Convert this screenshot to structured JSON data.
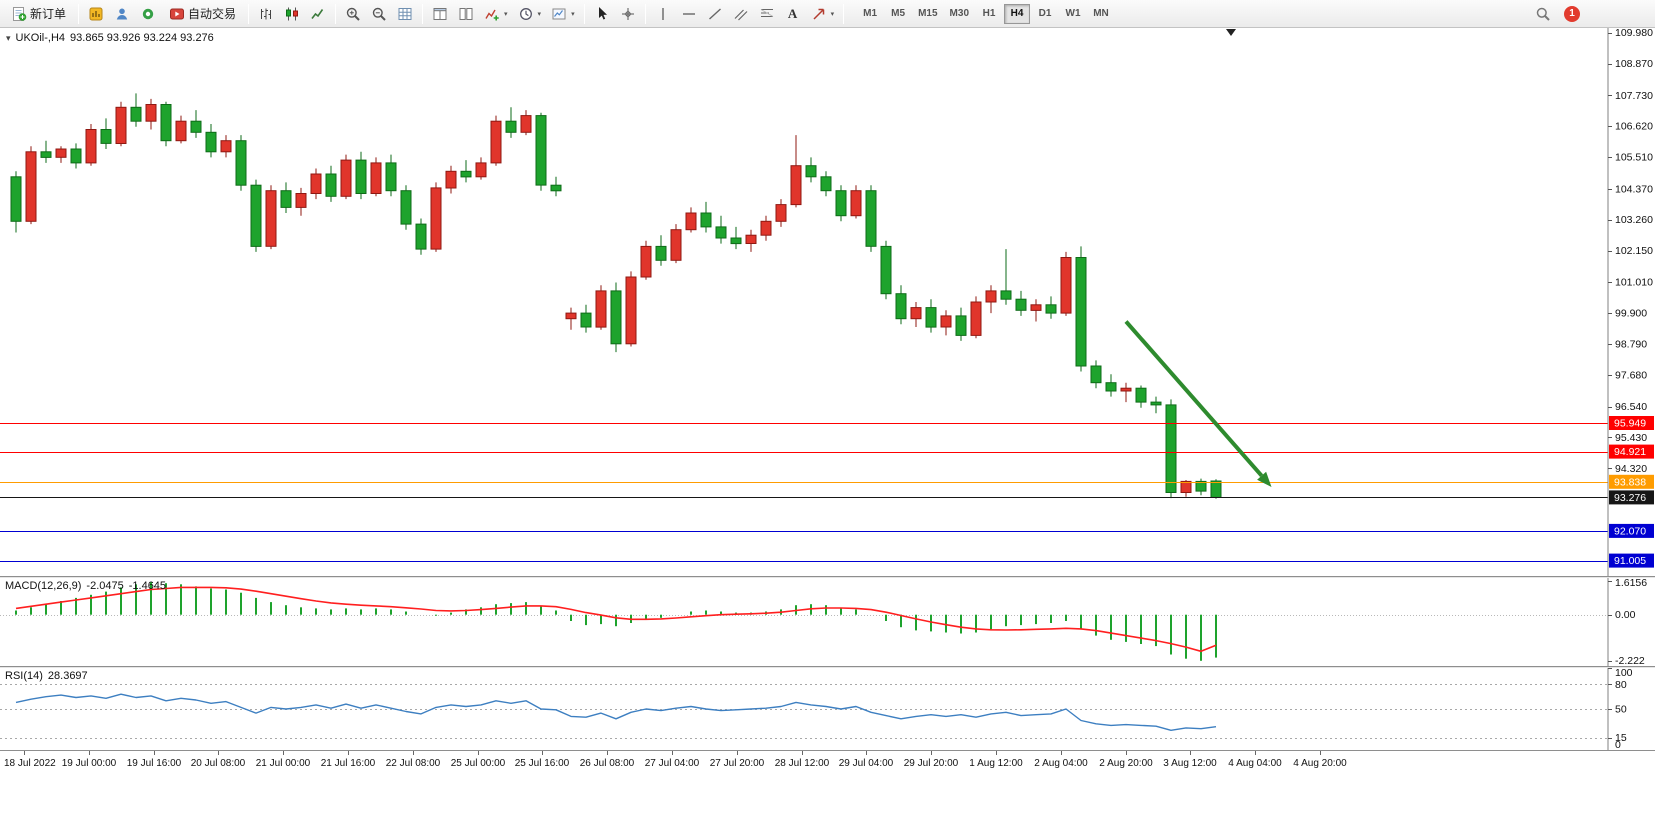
{
  "toolbar": {
    "new_order_label": "新订单",
    "autotrading_label": "自动交易",
    "text_tool_label": "A",
    "timeframes": [
      "M1",
      "M5",
      "M15",
      "M30",
      "H1",
      "H4",
      "D1",
      "W1",
      "MN"
    ],
    "active_timeframe": "H4",
    "notification_count": "1"
  },
  "chart_header": {
    "symbol_period": "UKOil-,H4",
    "ohlc_text": "93.865 93.926 93.224 93.276"
  },
  "indicators": {
    "macd": {
      "label": "MACD(12,26,9)",
      "value_main": "-2.0475",
      "value_signal": "-1.4645"
    },
    "rsi": {
      "label": "RSI(14)",
      "value": "28.3697"
    }
  },
  "time_axis": {
    "labels": [
      "18 Jul 2022",
      "19 Jul 00:00",
      "19 Jul 16:00",
      "20 Jul 08:00",
      "21 Jul 00:00",
      "21 Jul 16:00",
      "22 Jul 08:00",
      "25 Jul 00:00",
      "25 Jul 16:00",
      "26 Jul 08:00",
      "27 Jul 04:00",
      "27 Jul 20:00",
      "28 Jul 12:00",
      "29 Jul 04:00",
      "29 Jul 20:00",
      "1 Aug 12:00",
      "2 Aug 04:00",
      "2 Aug 20:00",
      "3 Aug 12:00",
      "4 Aug 04:00",
      "4 Aug 20:00"
    ]
  },
  "chart_data": [
    {
      "type": "candlestick",
      "symbol": "UKOil-",
      "timeframe": "H4",
      "color_convention": "red=bullish, green=bearish",
      "ylim": [
        90.45,
        110.15
      ],
      "up_color": "#e0352b",
      "up_border": "#8f1812",
      "down_color": "#1ea32d",
      "down_border": "#0e6b18",
      "y_ticks": [
        "109.980",
        "108.870",
        "107.730",
        "106.620",
        "105.510",
        "104.370",
        "103.260",
        "102.150",
        "101.010",
        "99.900",
        "98.790",
        "97.680",
        "96.540",
        "95.430",
        "94.320"
      ],
      "levels": [
        {
          "price": 95.949,
          "label": "95.949",
          "color": "#ff0000"
        },
        {
          "price": 94.921,
          "label": "94.921",
          "color": "#ff0000"
        },
        {
          "price": 93.838,
          "label": "93.838",
          "color": "#ff9c00"
        },
        {
          "price": 93.276,
          "label": "93.276",
          "color": "#161616",
          "role": "current-price"
        },
        {
          "price": 92.07,
          "label": "92.070",
          "color": "#0000d2"
        },
        {
          "price": 91.005,
          "label": "91.005",
          "color": "#0000d2"
        }
      ],
      "annotations": [
        {
          "type": "arrow",
          "from": {
            "index": 74,
            "price": 99.6
          },
          "to": {
            "index": 83.7,
            "price": 93.65
          },
          "color": "#2e8b2e",
          "width": 4
        }
      ],
      "shift_marker_index": 81,
      "ohlc": [
        [
          104.8,
          105.0,
          102.8,
          103.2
        ],
        [
          103.2,
          105.9,
          103.1,
          105.7
        ],
        [
          105.7,
          106.1,
          105.3,
          105.5
        ],
        [
          105.5,
          105.9,
          105.3,
          105.8
        ],
        [
          105.8,
          106.0,
          105.1,
          105.3
        ],
        [
          105.3,
          106.7,
          105.2,
          106.5
        ],
        [
          106.5,
          106.9,
          105.8,
          106.0
        ],
        [
          106.0,
          107.5,
          105.9,
          107.3
        ],
        [
          107.3,
          107.8,
          106.6,
          106.8
        ],
        [
          106.8,
          107.6,
          106.5,
          107.4
        ],
        [
          107.4,
          107.5,
          105.9,
          106.1
        ],
        [
          106.1,
          107.0,
          106.0,
          106.8
        ],
        [
          106.8,
          107.2,
          106.2,
          106.4
        ],
        [
          106.4,
          106.7,
          105.5,
          105.7
        ],
        [
          105.7,
          106.3,
          105.5,
          106.1
        ],
        [
          106.1,
          106.3,
          104.3,
          104.5
        ],
        [
          104.5,
          104.7,
          102.1,
          102.3
        ],
        [
          102.3,
          104.5,
          102.2,
          104.3
        ],
        [
          104.3,
          104.6,
          103.5,
          103.7
        ],
        [
          103.7,
          104.4,
          103.4,
          104.2
        ],
        [
          104.2,
          105.1,
          104.0,
          104.9
        ],
        [
          104.9,
          105.2,
          103.9,
          104.1
        ],
        [
          104.1,
          105.6,
          104.0,
          105.4
        ],
        [
          105.4,
          105.7,
          104.0,
          104.2
        ],
        [
          104.2,
          105.5,
          104.1,
          105.3
        ],
        [
          105.3,
          105.6,
          104.1,
          104.3
        ],
        [
          104.3,
          104.5,
          102.9,
          103.1
        ],
        [
          103.1,
          103.3,
          102.0,
          102.2
        ],
        [
          102.2,
          104.6,
          102.1,
          104.4
        ],
        [
          104.4,
          105.2,
          104.2,
          105.0
        ],
        [
          105.0,
          105.4,
          104.6,
          104.8
        ],
        [
          104.8,
          105.5,
          104.7,
          105.3
        ],
        [
          105.3,
          107.0,
          105.2,
          106.8
        ],
        [
          106.8,
          107.3,
          106.2,
          106.4
        ],
        [
          106.4,
          107.2,
          106.3,
          107.0
        ],
        [
          107.0,
          107.1,
          104.3,
          104.5
        ],
        [
          104.5,
          104.8,
          104.1,
          104.3
        ],
        [
          99.7,
          100.1,
          99.3,
          99.9
        ],
        [
          99.9,
          100.2,
          99.2,
          99.4
        ],
        [
          99.4,
          100.9,
          99.3,
          100.7
        ],
        [
          100.7,
          101.0,
          98.5,
          98.8
        ],
        [
          98.8,
          101.4,
          98.7,
          101.2
        ],
        [
          101.2,
          102.5,
          101.1,
          102.3
        ],
        [
          102.3,
          102.7,
          101.6,
          101.8
        ],
        [
          101.8,
          103.1,
          101.7,
          102.9
        ],
        [
          102.9,
          103.7,
          102.8,
          103.5
        ],
        [
          103.5,
          103.9,
          102.8,
          103.0
        ],
        [
          103.0,
          103.4,
          102.4,
          102.6
        ],
        [
          102.6,
          103.0,
          102.2,
          102.4
        ],
        [
          102.4,
          102.9,
          102.1,
          102.7
        ],
        [
          102.7,
          103.4,
          102.5,
          103.2
        ],
        [
          103.2,
          104.0,
          103.0,
          103.8
        ],
        [
          103.8,
          106.3,
          103.7,
          105.2
        ],
        [
          105.2,
          105.5,
          104.6,
          104.8
        ],
        [
          104.8,
          105.0,
          104.1,
          104.3
        ],
        [
          104.3,
          104.5,
          103.2,
          103.4
        ],
        [
          103.4,
          104.5,
          103.3,
          104.3
        ],
        [
          104.3,
          104.5,
          102.1,
          102.3
        ],
        [
          102.3,
          102.5,
          100.4,
          100.6
        ],
        [
          100.6,
          100.9,
          99.5,
          99.7
        ],
        [
          99.7,
          100.3,
          99.4,
          100.1
        ],
        [
          100.1,
          100.4,
          99.2,
          99.4
        ],
        [
          99.4,
          100.0,
          99.1,
          99.8
        ],
        [
          99.8,
          100.1,
          98.9,
          99.1
        ],
        [
          99.1,
          100.5,
          99.0,
          100.3
        ],
        [
          100.3,
          100.9,
          99.9,
          100.7
        ],
        [
          100.7,
          102.2,
          100.2,
          100.4
        ],
        [
          100.4,
          100.7,
          99.8,
          100.0
        ],
        [
          100.0,
          100.4,
          99.6,
          100.2
        ],
        [
          100.2,
          100.5,
          99.7,
          99.9
        ],
        [
          99.9,
          102.1,
          99.8,
          101.9
        ],
        [
          101.9,
          102.3,
          97.8,
          98.0
        ],
        [
          98.0,
          98.2,
          97.2,
          97.4
        ],
        [
          97.4,
          97.7,
          96.9,
          97.1
        ],
        [
          97.1,
          97.4,
          96.7,
          97.2
        ],
        [
          97.2,
          97.3,
          96.5,
          96.7
        ],
        [
          96.7,
          96.9,
          96.3,
          96.6
        ],
        [
          96.6,
          96.8,
          93.25,
          93.45
        ],
        [
          93.45,
          93.9,
          93.3,
          93.85
        ],
        [
          93.85,
          93.95,
          93.35,
          93.5
        ],
        [
          93.865,
          93.926,
          93.224,
          93.276
        ]
      ]
    },
    {
      "type": "macd",
      "name": "MACD(12,26,9)",
      "ylim": [
        -2.45,
        1.75
      ],
      "histogram_color": "#1ea32d",
      "signal_color": "#ff1f1f",
      "axis": [
        {
          "label": "1.6156",
          "value": 1.6156
        },
        {
          "label": "0.00",
          "value": 0
        },
        {
          "label": "-2.222",
          "value": -2.222
        }
      ],
      "histogram": [
        0.2,
        0.35,
        0.5,
        0.65,
        0.8,
        0.95,
        1.1,
        1.3,
        1.45,
        1.55,
        1.5,
        1.45,
        1.35,
        1.25,
        1.2,
        1.05,
        0.8,
        0.6,
        0.45,
        0.35,
        0.3,
        0.25,
        0.3,
        0.25,
        0.3,
        0.25,
        0.15,
        0.0,
        -0.05,
        0.1,
        0.25,
        0.35,
        0.5,
        0.55,
        0.6,
        0.4,
        0.2,
        -0.3,
        -0.5,
        -0.45,
        -0.55,
        -0.4,
        -0.2,
        -0.15,
        0.0,
        0.15,
        0.2,
        0.15,
        0.1,
        0.1,
        0.15,
        0.25,
        0.45,
        0.5,
        0.45,
        0.3,
        0.25,
        0.0,
        -0.3,
        -0.6,
        -0.75,
        -0.8,
        -0.85,
        -0.9,
        -0.85,
        -0.7,
        -0.55,
        -0.5,
        -0.45,
        -0.4,
        -0.3,
        -0.7,
        -1.0,
        -1.2,
        -1.3,
        -1.4,
        -1.5,
        -1.9,
        -2.1,
        -2.2,
        -2.05
      ],
      "signal": [
        0.3,
        0.4,
        0.5,
        0.6,
        0.7,
        0.8,
        0.9,
        1.0,
        1.1,
        1.2,
        1.25,
        1.3,
        1.3,
        1.3,
        1.28,
        1.22,
        1.12,
        1.0,
        0.88,
        0.76,
        0.65,
        0.56,
        0.5,
        0.45,
        0.42,
        0.38,
        0.33,
        0.27,
        0.2,
        0.18,
        0.2,
        0.24,
        0.3,
        0.36,
        0.42,
        0.42,
        0.38,
        0.25,
        0.1,
        -0.02,
        -0.15,
        -0.22,
        -0.22,
        -0.2,
        -0.16,
        -0.1,
        -0.05,
        0.0,
        0.02,
        0.04,
        0.07,
        0.12,
        0.2,
        0.28,
        0.32,
        0.32,
        0.3,
        0.24,
        0.12,
        -0.04,
        -0.2,
        -0.35,
        -0.48,
        -0.6,
        -0.68,
        -0.72,
        -0.73,
        -0.72,
        -0.7,
        -0.68,
        -0.65,
        -0.68,
        -0.76,
        -0.88,
        -1.0,
        -1.12,
        -1.24,
        -1.38,
        -1.55,
        -1.75,
        -1.46
      ]
    },
    {
      "type": "line",
      "name": "RSI(14)",
      "ylim": [
        0,
        100
      ],
      "line_color": "#3d7fc1",
      "level_lines": [
        80,
        50,
        15
      ],
      "axis": [
        {
          "label": "100",
          "value": 100
        },
        {
          "label": "80",
          "value": 80
        },
        {
          "label": "50",
          "value": 50
        },
        {
          "label": "15",
          "value": 15
        },
        {
          "label": "0",
          "value": 0
        }
      ],
      "values": [
        58,
        62,
        65,
        67,
        64,
        66,
        63,
        68,
        64,
        66,
        60,
        63,
        61,
        57,
        59,
        52,
        45,
        52,
        50,
        52,
        55,
        51,
        56,
        51,
        55,
        51,
        47,
        44,
        52,
        55,
        53,
        55,
        60,
        57,
        60,
        50,
        49,
        41,
        40,
        45,
        38,
        46,
        50,
        48,
        51,
        53,
        50,
        48,
        49,
        50,
        51,
        53,
        58,
        55,
        53,
        50,
        53,
        46,
        42,
        38,
        41,
        43,
        41,
        43,
        40,
        44,
        46,
        42,
        43,
        44,
        50,
        36,
        32,
        30,
        31,
        30,
        29,
        24,
        27,
        26,
        28.37
      ]
    }
  ]
}
